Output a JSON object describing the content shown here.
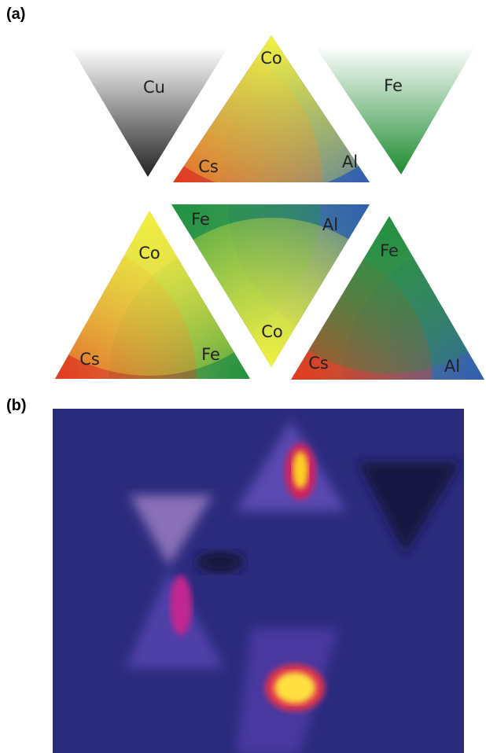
{
  "panels": [
    {
      "label": "(a)",
      "triangles": [
        {
          "labels": [
            "Cu"
          ]
        },
        {
          "labels": [
            "Co",
            "Cs",
            "Al"
          ]
        },
        {
          "labels": [
            "Fe"
          ]
        },
        {
          "labels": [
            "Co",
            "Cs",
            "Fe"
          ]
        },
        {
          "labels": [
            "Fe",
            "Al",
            "Co"
          ]
        },
        {
          "labels": [
            "Fe",
            "Cs",
            "Al"
          ]
        }
      ]
    },
    {
      "label": "(b)"
    }
  ]
}
